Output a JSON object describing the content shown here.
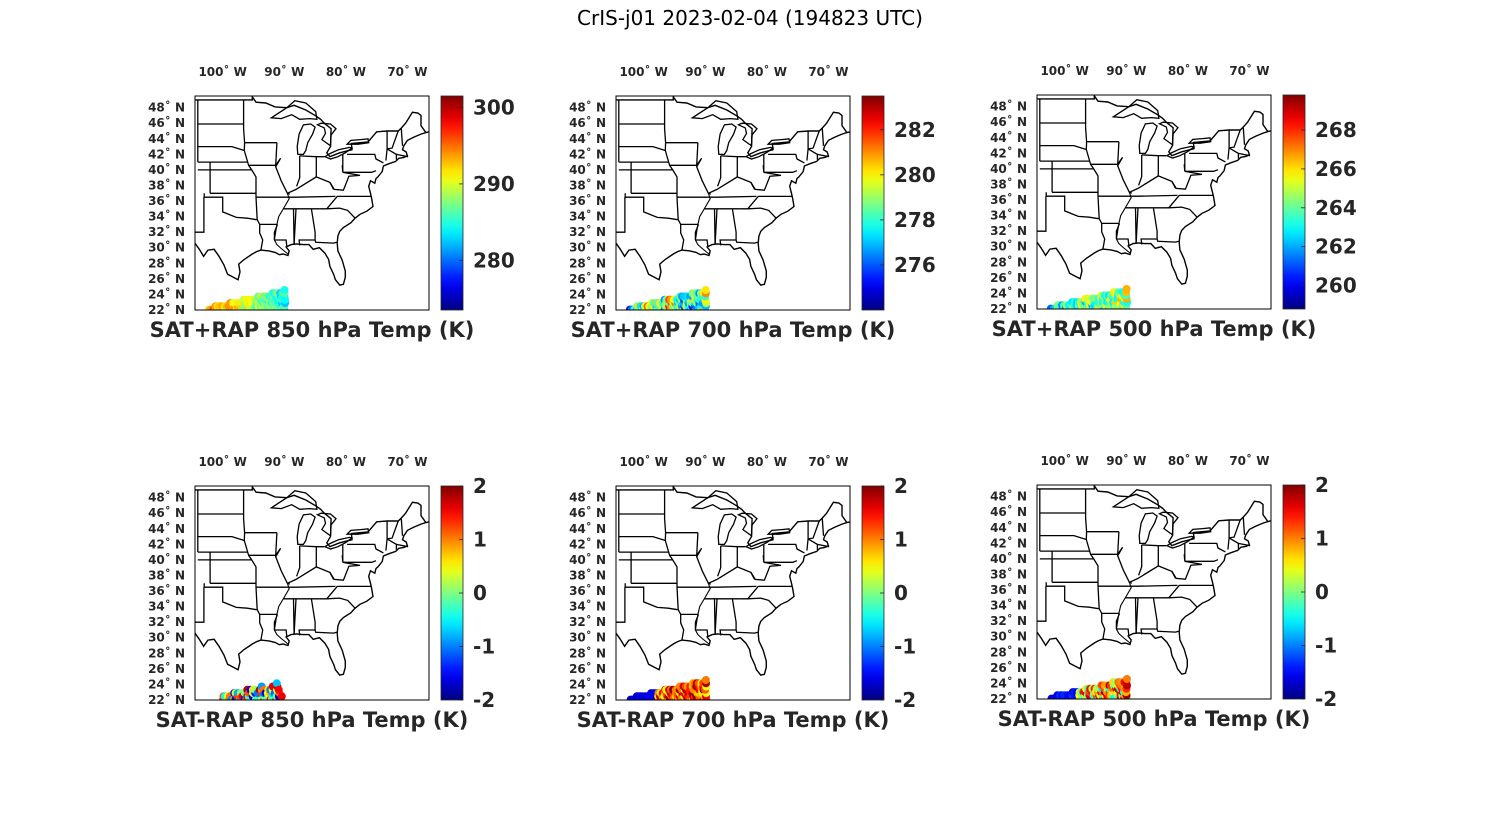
{
  "figure": {
    "title": "CrIS-j01 2023-02-04 (194823 UTC)",
    "map": {
      "lon_ticks": [
        "100˚ W",
        "90˚ W",
        "80˚ W",
        "70˚ W"
      ],
      "lat_ticks": [
        "48˚ N",
        "46˚ N",
        "44˚ N",
        "42˚ N",
        "40˚ N",
        "38˚ N",
        "36˚ N",
        "34˚ N",
        "32˚ N",
        "30˚ N",
        "28˚ N",
        "26˚ N",
        "24˚ N",
        "22˚ N"
      ],
      "lat_values": [
        48,
        46,
        44,
        42,
        40,
        38,
        36,
        34,
        32,
        30,
        28,
        26,
        24,
        22
      ],
      "lon_values": [
        -100,
        -90,
        -80,
        -70
      ],
      "extent": {
        "lon": [
          -104.5,
          -66.5
        ],
        "lat": [
          22,
          49.5
        ]
      },
      "colormap": "jet"
    },
    "panels": [
      {
        "title": "SAT+RAP 850 hPa Temp (K)",
        "crange": [
          273.5,
          301.5
        ],
        "cticks": [
          280,
          290,
          300
        ],
        "ctick_labels": [
          "280",
          "290",
          "300"
        ],
        "pattern": "sum850"
      },
      {
        "title": "SAT+RAP 700 hPa Temp (K)",
        "crange": [
          274.0,
          283.5
        ],
        "cticks": [
          276,
          278,
          280,
          282
        ],
        "ctick_labels": [
          "276",
          "278",
          "280",
          "282"
        ],
        "pattern": "sum700"
      },
      {
        "title": "SAT+RAP 500 hPa Temp (K)",
        "crange": [
          258.8,
          269.8
        ],
        "cticks": [
          260,
          262,
          264,
          266,
          268
        ],
        "ctick_labels": [
          "260",
          "262",
          "264",
          "266",
          "268"
        ],
        "pattern": "sum500"
      },
      {
        "title": "SAT-RAP 850 hPa Temp (K)",
        "crange": [
          -2,
          2
        ],
        "cticks": [
          -2,
          -1,
          0,
          1,
          2
        ],
        "ctick_labels": [
          "-2",
          "-1",
          "0",
          "1",
          "2"
        ],
        "pattern": "diff850"
      },
      {
        "title": "SAT-RAP 700 hPa Temp (K)",
        "crange": [
          -2,
          2
        ],
        "cticks": [
          -2,
          -1,
          0,
          1,
          2
        ],
        "ctick_labels": [
          "-2",
          "-1",
          "0",
          "1",
          "2"
        ],
        "pattern": "diff700"
      },
      {
        "title": "SAT-RAP 500 hPa Temp (K)",
        "crange": [
          -2,
          2
        ],
        "cticks": [
          -2,
          -1,
          0,
          1,
          2
        ],
        "ctick_labels": [
          "-2",
          "-1",
          "0",
          "1",
          "2"
        ],
        "pattern": "diff500"
      }
    ]
  }
}
